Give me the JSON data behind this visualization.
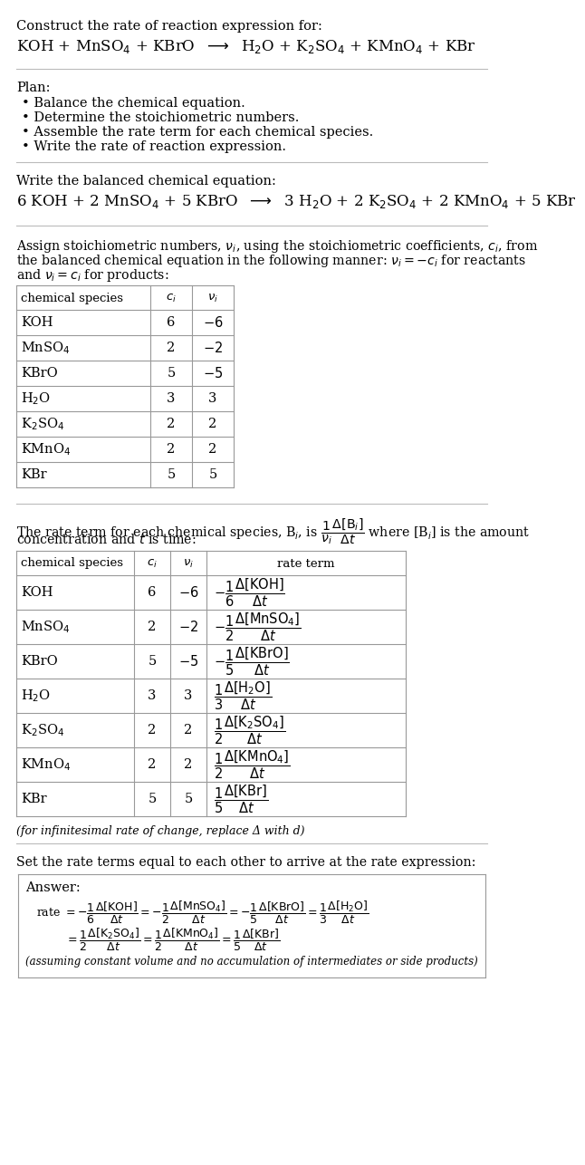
{
  "bg_color": "#ffffff",
  "font_family": "DejaVu Serif",
  "title_text": "Construct the rate of reaction expression for:",
  "rxn_unbalanced": "KOH + MnSO$_4$ + KBrO  $\\longrightarrow$  H$_2$O + K$_2$SO$_4$ + KMnO$_4$ + KBr",
  "plan_header": "Plan:",
  "plan_items": [
    "• Balance the chemical equation.",
    "• Determine the stoichiometric numbers.",
    "• Assemble the rate term for each chemical species.",
    "• Write the rate of reaction expression."
  ],
  "balanced_header": "Write the balanced chemical equation:",
  "rxn_balanced": "6 KOH + 2 MnSO$_4$ + 5 KBrO  $\\longrightarrow$  3 H$_2$O + 2 K$_2$SO$_4$ + 2 KMnO$_4$ + 5 KBr",
  "stoich_para": [
    "Assign stoichiometric numbers, $\\nu_i$, using the stoichiometric coefficients, $c_i$, from",
    "the balanced chemical equation in the following manner: $\\nu_i = -c_i$ for reactants",
    "and $\\nu_i = c_i$ for products:"
  ],
  "table1_species": [
    "KOH",
    "MnSO$_4$",
    "KBrO",
    "H$_2$O",
    "K$_2$SO$_4$",
    "KMnO$_4$",
    "KBr"
  ],
  "table1_ci": [
    "6",
    "2",
    "5",
    "3",
    "2",
    "2",
    "5"
  ],
  "table1_ni": [
    "$-6$",
    "$-2$",
    "$-5$",
    "3",
    "2",
    "2",
    "5"
  ],
  "rate_para": [
    "The rate term for each chemical species, B$_i$, is $\\dfrac{1}{\\nu_i}\\dfrac{\\Delta[\\mathrm{B}_i]}{\\Delta t}$ where [B$_i$] is the amount",
    "concentration and $t$ is time:"
  ],
  "table2_species": [
    "KOH",
    "MnSO$_4$",
    "KBrO",
    "H$_2$O",
    "K$_2$SO$_4$",
    "KMnO$_4$",
    "KBr"
  ],
  "table2_ci": [
    "6",
    "2",
    "5",
    "3",
    "2",
    "2",
    "5"
  ],
  "table2_ni": [
    "$-6$",
    "$-2$",
    "$-5$",
    "3",
    "2",
    "2",
    "5"
  ],
  "table2_rate": [
    "$-\\dfrac{1}{6}\\dfrac{\\Delta[\\mathrm{KOH}]}{\\Delta t}$",
    "$-\\dfrac{1}{2}\\dfrac{\\Delta[\\mathrm{MnSO_4}]}{\\Delta t}$",
    "$-\\dfrac{1}{5}\\dfrac{\\Delta[\\mathrm{KBrO}]}{\\Delta t}$",
    "$\\dfrac{1}{3}\\dfrac{\\Delta[\\mathrm{H_2O}]}{\\Delta t}$",
    "$\\dfrac{1}{2}\\dfrac{\\Delta[\\mathrm{K_2SO_4}]}{\\Delta t}$",
    "$\\dfrac{1}{2}\\dfrac{\\Delta[\\mathrm{KMnO_4}]}{\\Delta t}$",
    "$\\dfrac{1}{5}\\dfrac{\\Delta[\\mathrm{KBr}]}{\\Delta t}$"
  ],
  "infinitesimal_note": "(for infinitesimal rate of change, replace Δ with d)",
  "answer_header": "Set the rate terms equal to each other to arrive at the rate expression:",
  "answer_label": "Answer:",
  "answer_line1": "rate $= -\\dfrac{1}{6}\\dfrac{\\Delta[\\mathrm{KOH}]}{\\Delta t} = -\\dfrac{1}{2}\\dfrac{\\Delta[\\mathrm{MnSO_4}]}{\\Delta t} = -\\dfrac{1}{5}\\dfrac{\\Delta[\\mathrm{KBrO}]}{\\Delta t} = \\dfrac{1}{3}\\dfrac{\\Delta[\\mathrm{H_2O}]}{\\Delta t}$",
  "answer_line2": "$= \\dfrac{1}{2}\\dfrac{\\Delta[\\mathrm{K_2SO_4}]}{\\Delta t} = \\dfrac{1}{2}\\dfrac{\\Delta[\\mathrm{KMnO_4}]}{\\Delta t} = \\dfrac{1}{5}\\dfrac{\\Delta[\\mathrm{KBr}]}{\\Delta t}$",
  "answer_note": "(assuming constant volume and no accumulation of intermediates or side products)",
  "line_color": "#bbbbbb",
  "table_line_color": "#999999"
}
